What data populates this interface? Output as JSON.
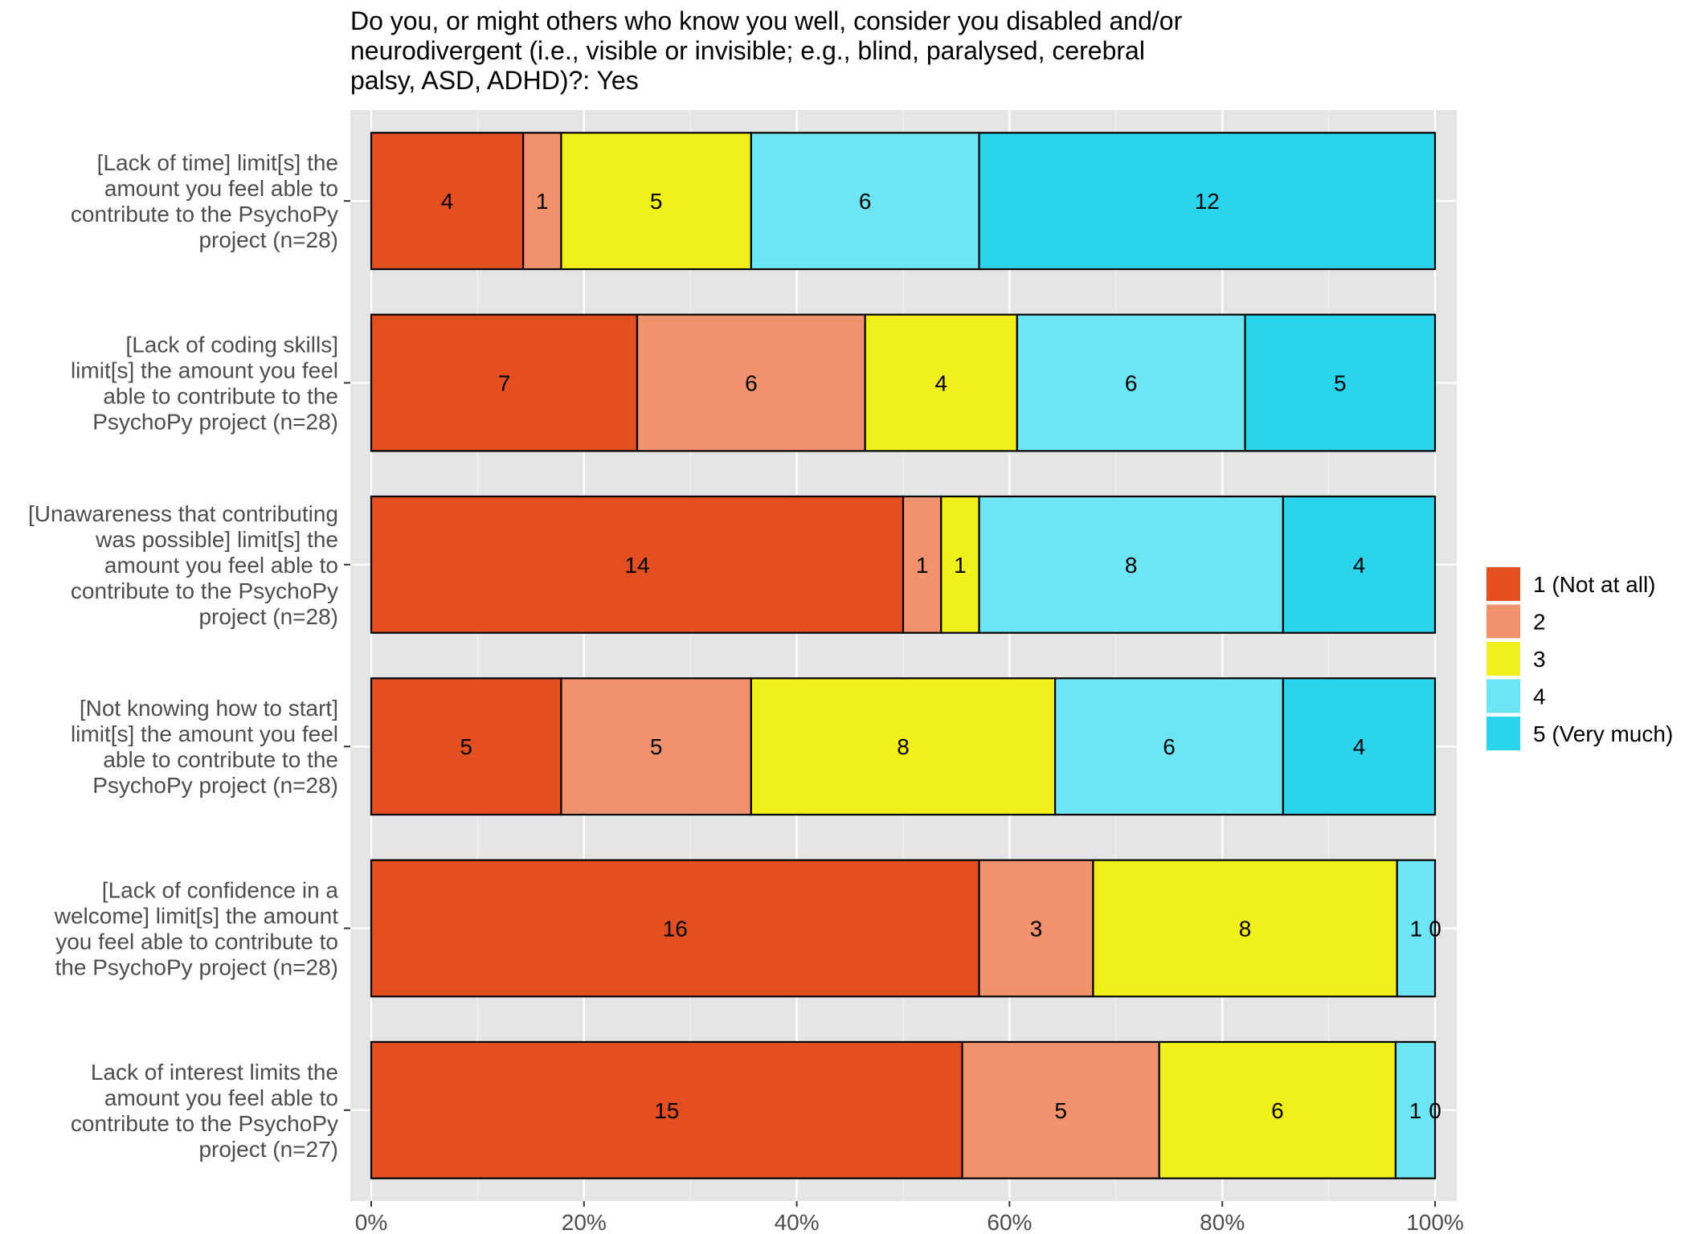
{
  "chart_data": {
    "type": "bar",
    "orientation": "horizontal-stacked-percent",
    "title_lines": [
      "Do you, or might others who know you well, consider you disabled and/or",
      "neurodivergent (i.e., visible or invisible; e.g., blind, paralysed, cerebral",
      "palsy, ASD, ADHD)?: Yes"
    ],
    "categories": [
      {
        "lines": [
          "[Lack of time] limit[s] the",
          "amount you feel able to",
          "contribute to the PsychoPy",
          "project (n=28)"
        ]
      },
      {
        "lines": [
          "[Lack of coding skills]",
          "limit[s] the amount you feel",
          "able to contribute to the",
          "PsychoPy project  (n=28)"
        ]
      },
      {
        "lines": [
          "[Unawareness that contributing",
          "was possible] limit[s] the",
          "amount you feel able to",
          "contribute to the PsychoPy",
          "project (n=28)"
        ]
      },
      {
        "lines": [
          "[Not knowing how to start]",
          "limit[s] the amount you feel",
          "able to contribute to the",
          "PsychoPy project (n=28)"
        ]
      },
      {
        "lines": [
          "[Lack of confidence in a",
          "welcome] limit[s] the amount",
          "you feel able to contribute to",
          "the PsychoPy project (n=28)"
        ]
      },
      {
        "lines": [
          "Lack of interest limits the",
          "amount you feel able to",
          "contribute to the PsychoPy",
          "project (n=27)"
        ]
      }
    ],
    "series": [
      {
        "name": "1 (Not at all)",
        "color": "#E34F21",
        "values": [
          4,
          7,
          14,
          5,
          16,
          15
        ]
      },
      {
        "name": "2",
        "color": "#F0936D",
        "values": [
          1,
          6,
          1,
          5,
          3,
          5
        ]
      },
      {
        "name": "3",
        "color": "#F2F01A",
        "values": [
          5,
          4,
          1,
          8,
          8,
          6
        ]
      },
      {
        "name": "4",
        "color": "#6EE5F5",
        "values": [
          6,
          6,
          8,
          6,
          1,
          1
        ]
      },
      {
        "name": "5 (Very much)",
        "color": "#2AD4EC",
        "values": [
          12,
          5,
          4,
          4,
          0,
          0
        ]
      }
    ],
    "x_ticks": [
      "0%",
      "20%",
      "40%",
      "60%",
      "80%",
      "100%"
    ],
    "xlim": [
      0,
      100
    ],
    "grid": true,
    "legend_position": "right"
  }
}
